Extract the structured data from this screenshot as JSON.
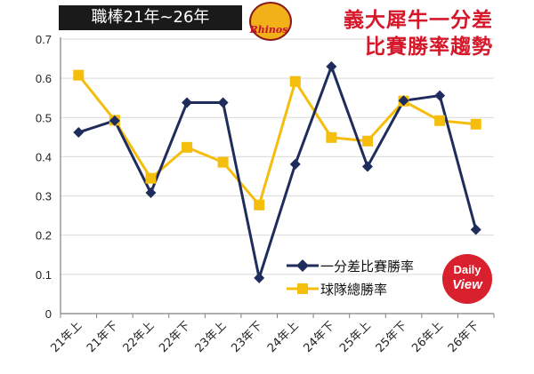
{
  "header": {
    "tag": "職棒21年~26年",
    "title_line1": "義大犀牛一分差",
    "title_line2": "比賽勝率趨勢",
    "logo_text": "Rhinos"
  },
  "badge": {
    "line1": "Daily",
    "line2": "View"
  },
  "colors": {
    "navy": "#1f2d5c",
    "gold": "#f5bd0c",
    "axis": "#808080",
    "grid": "#d9d9d9"
  },
  "chart_data": {
    "type": "line",
    "categories": [
      "21年上",
      "21年下",
      "22年上",
      "22年下",
      "23年上",
      "23年下",
      "24年上",
      "24年下",
      "25年上",
      "25年下",
      "26年上",
      "26年下"
    ],
    "series": [
      {
        "name": "一分差比賽勝率",
        "marker": "diamond",
        "color": "#1f2d5c",
        "values": [
          0.462,
          0.492,
          0.308,
          0.538,
          0.538,
          0.091,
          0.381,
          0.63,
          0.375,
          0.543,
          0.556,
          0.214
        ]
      },
      {
        "name": "球隊總勝率",
        "marker": "square",
        "color": "#f5bd0c",
        "values": [
          0.608,
          0.493,
          0.345,
          0.424,
          0.386,
          0.277,
          0.592,
          0.449,
          0.44,
          0.542,
          0.492,
          0.483
        ]
      }
    ],
    "yticks": [
      "0",
      "0.1",
      "0.2",
      "0.3",
      "0.4",
      "0.5",
      "0.6",
      "0.7"
    ],
    "ylim": [
      0,
      0.7
    ],
    "grid": true,
    "legend_position": "bottom-right"
  }
}
